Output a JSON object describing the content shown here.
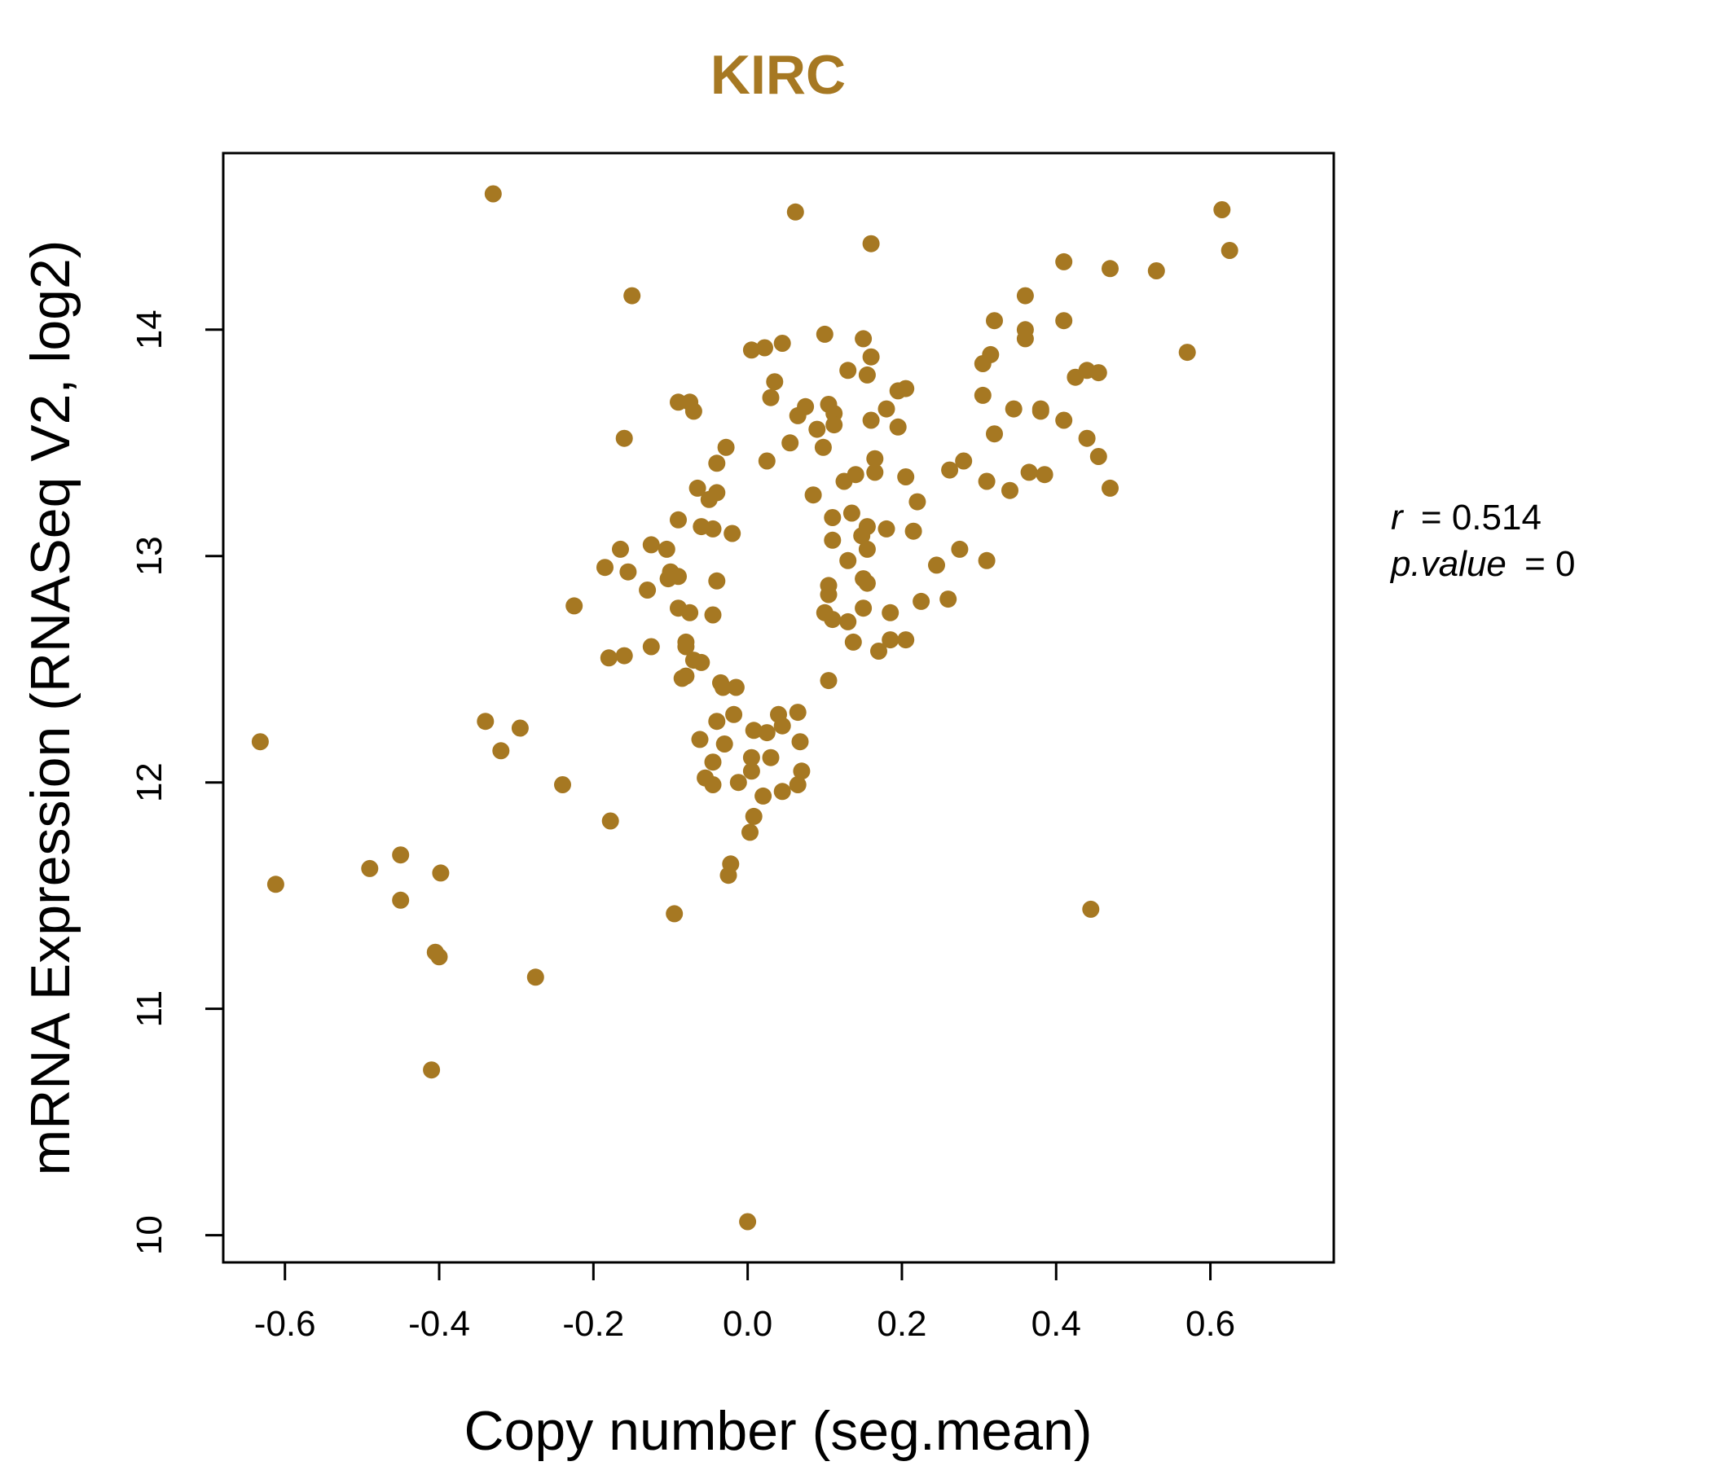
{
  "chart_data": {
    "type": "scatter",
    "title": "KIRC",
    "xlabel": "Copy number (seg.mean)",
    "ylabel": "mRNA Expression (RNASeq V2, log2)",
    "xlim": [
      -0.68,
      0.76
    ],
    "ylim": [
      9.88,
      14.78
    ],
    "xticks": [
      -0.6,
      -0.4,
      -0.2,
      0.0,
      0.2,
      0.4,
      0.6
    ],
    "xtick_labels": [
      "-0.6",
      "-0.4",
      "-0.2",
      "0.0",
      "0.2",
      "0.4",
      "0.6"
    ],
    "yticks": [
      10,
      11,
      12,
      13,
      14
    ],
    "ytick_labels": [
      "10",
      "11",
      "12",
      "13",
      "14"
    ],
    "grid": false,
    "color": "#A67822",
    "stats": {
      "r_label": "r",
      "r_value": "0.514",
      "p_label": "p.value",
      "p_value": "0"
    },
    "points": [
      [
        -0.33,
        14.6
      ],
      [
        0.062,
        14.52
      ],
      [
        0.615,
        14.53
      ],
      [
        0.16,
        14.38
      ],
      [
        0.625,
        14.35
      ],
      [
        0.41,
        14.3
      ],
      [
        0.47,
        14.27
      ],
      [
        0.53,
        14.26
      ],
      [
        -0.15,
        14.15
      ],
      [
        0.36,
        14.15
      ],
      [
        0.32,
        14.04
      ],
      [
        0.41,
        14.04
      ],
      [
        0.36,
        14.0
      ],
      [
        0.1,
        13.98
      ],
      [
        0.15,
        13.96
      ],
      [
        0.36,
        13.96
      ],
      [
        0.045,
        13.94
      ],
      [
        0.57,
        13.9
      ],
      [
        0.315,
        13.89
      ],
      [
        0.005,
        13.91
      ],
      [
        0.022,
        13.92
      ],
      [
        0.16,
        13.88
      ],
      [
        0.305,
        13.85
      ],
      [
        0.13,
        13.82
      ],
      [
        0.44,
        13.82
      ],
      [
        0.455,
        13.81
      ],
      [
        0.425,
        13.79
      ],
      [
        0.155,
        13.8
      ],
      [
        0.035,
        13.77
      ],
      [
        0.205,
        13.74
      ],
      [
        0.195,
        13.73
      ],
      [
        0.305,
        13.71
      ],
      [
        0.03,
        13.7
      ],
      [
        -0.09,
        13.68
      ],
      [
        -0.075,
        13.68
      ],
      [
        0.105,
        13.67
      ],
      [
        0.075,
        13.66
      ],
      [
        0.345,
        13.65
      ],
      [
        0.38,
        13.65
      ],
      [
        0.38,
        13.64
      ],
      [
        0.18,
        13.65
      ],
      [
        -0.07,
        13.64
      ],
      [
        0.112,
        13.63
      ],
      [
        0.16,
        13.6
      ],
      [
        0.41,
        13.6
      ],
      [
        0.065,
        13.62
      ],
      [
        0.112,
        13.58
      ],
      [
        0.09,
        13.56
      ],
      [
        0.195,
        13.57
      ],
      [
        0.32,
        13.54
      ],
      [
        0.44,
        13.52
      ],
      [
        -0.16,
        13.52
      ],
      [
        0.055,
        13.5
      ],
      [
        0.098,
        13.48
      ],
      [
        0.455,
        13.44
      ],
      [
        -0.028,
        13.48
      ],
      [
        0.165,
        13.43
      ],
      [
        0.28,
        13.42
      ],
      [
        0.025,
        13.42
      ],
      [
        -0.04,
        13.41
      ],
      [
        0.262,
        13.38
      ],
      [
        0.365,
        13.37
      ],
      [
        0.385,
        13.36
      ],
      [
        0.165,
        13.37
      ],
      [
        0.14,
        13.36
      ],
      [
        0.205,
        13.35
      ],
      [
        0.125,
        13.33
      ],
      [
        0.31,
        13.33
      ],
      [
        0.47,
        13.3
      ],
      [
        0.34,
        13.29
      ],
      [
        -0.065,
        13.3
      ],
      [
        -0.04,
        13.28
      ],
      [
        0.22,
        13.24
      ],
      [
        0.085,
        13.27
      ],
      [
        -0.05,
        13.25
      ],
      [
        0.135,
        13.19
      ],
      [
        0.11,
        13.17
      ],
      [
        -0.09,
        13.16
      ],
      [
        0.155,
        13.13
      ],
      [
        0.215,
        13.11
      ],
      [
        0.18,
        13.12
      ],
      [
        -0.06,
        13.13
      ],
      [
        -0.045,
        13.12
      ],
      [
        -0.02,
        13.1
      ],
      [
        0.148,
        13.09
      ],
      [
        0.11,
        13.07
      ],
      [
        0.275,
        13.03
      ],
      [
        0.155,
        13.03
      ],
      [
        -0.125,
        13.05
      ],
      [
        -0.105,
        13.03
      ],
      [
        -0.165,
        13.03
      ],
      [
        0.31,
        12.98
      ],
      [
        0.13,
        12.98
      ],
      [
        0.245,
        12.96
      ],
      [
        -0.185,
        12.95
      ],
      [
        -0.155,
        12.93
      ],
      [
        -0.1,
        12.93
      ],
      [
        -0.09,
        12.91
      ],
      [
        -0.103,
        12.9
      ],
      [
        0.15,
        12.9
      ],
      [
        0.155,
        12.88
      ],
      [
        -0.04,
        12.89
      ],
      [
        0.105,
        12.87
      ],
      [
        -0.13,
        12.85
      ],
      [
        0.105,
        12.83
      ],
      [
        0.225,
        12.8
      ],
      [
        0.26,
        12.81
      ],
      [
        -0.225,
        12.78
      ],
      [
        0.15,
        12.77
      ],
      [
        -0.09,
        12.77
      ],
      [
        -0.075,
        12.75
      ],
      [
        0.185,
        12.75
      ],
      [
        -0.045,
        12.74
      ],
      [
        0.1,
        12.75
      ],
      [
        0.11,
        12.72
      ],
      [
        0.13,
        12.71
      ],
      [
        0.205,
        12.63
      ],
      [
        0.185,
        12.63
      ],
      [
        0.137,
        12.62
      ],
      [
        -0.08,
        12.62
      ],
      [
        -0.125,
        12.6
      ],
      [
        -0.08,
        12.6
      ],
      [
        0.17,
        12.58
      ],
      [
        -0.16,
        12.56
      ],
      [
        -0.18,
        12.55
      ],
      [
        -0.07,
        12.54
      ],
      [
        -0.06,
        12.53
      ],
      [
        -0.08,
        12.47
      ],
      [
        -0.085,
        12.46
      ],
      [
        0.105,
        12.45
      ],
      [
        -0.035,
        12.44
      ],
      [
        -0.032,
        12.42
      ],
      [
        -0.015,
        12.42
      ],
      [
        0.065,
        12.31
      ],
      [
        -0.018,
        12.3
      ],
      [
        0.04,
        12.3
      ],
      [
        -0.34,
        12.27
      ],
      [
        -0.04,
        12.27
      ],
      [
        0.045,
        12.25
      ],
      [
        -0.295,
        12.24
      ],
      [
        0.008,
        12.23
      ],
      [
        0.025,
        12.22
      ],
      [
        -0.062,
        12.19
      ],
      [
        -0.03,
        12.17
      ],
      [
        0.068,
        12.18
      ],
      [
        -0.632,
        12.18
      ],
      [
        -0.32,
        12.14
      ],
      [
        0.03,
        12.11
      ],
      [
        0.005,
        12.11
      ],
      [
        -0.045,
        12.09
      ],
      [
        0.005,
        12.05
      ],
      [
        0.07,
        12.05
      ],
      [
        -0.055,
        12.02
      ],
      [
        -0.012,
        12.0
      ],
      [
        -0.045,
        11.99
      ],
      [
        0.065,
        11.99
      ],
      [
        -0.24,
        11.99
      ],
      [
        0.045,
        11.96
      ],
      [
        0.02,
        11.94
      ],
      [
        0.008,
        11.85
      ],
      [
        -0.178,
        11.83
      ],
      [
        0.003,
        11.78
      ],
      [
        -0.45,
        11.68
      ],
      [
        -0.022,
        11.64
      ],
      [
        -0.49,
        11.62
      ],
      [
        -0.398,
        11.6
      ],
      [
        -0.025,
        11.59
      ],
      [
        -0.612,
        11.55
      ],
      [
        -0.45,
        11.48
      ],
      [
        0.445,
        11.44
      ],
      [
        -0.095,
        11.42
      ],
      [
        -0.405,
        11.25
      ],
      [
        -0.4,
        11.23
      ],
      [
        -0.275,
        11.14
      ],
      [
        -0.41,
        10.73
      ],
      [
        0.0,
        10.06
      ]
    ]
  }
}
